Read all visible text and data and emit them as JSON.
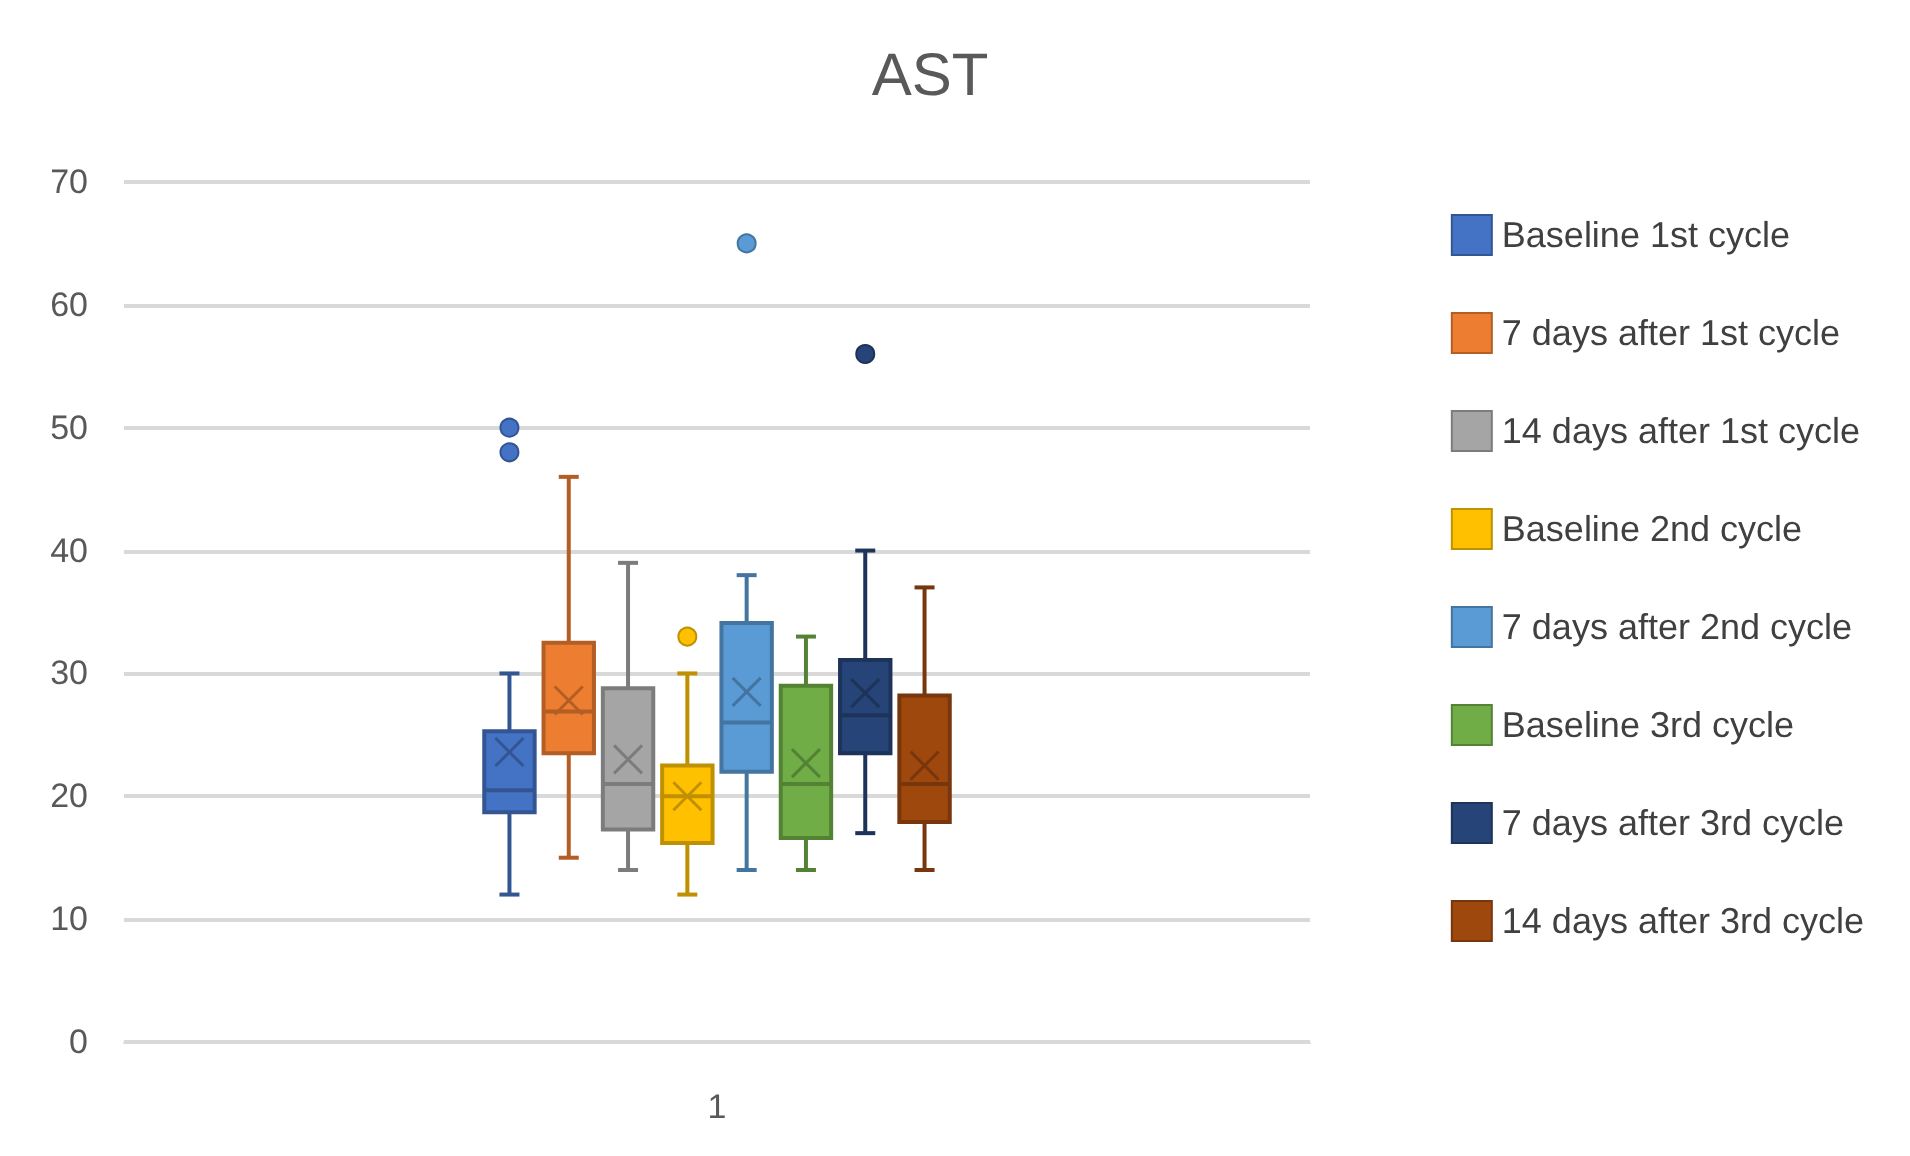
{
  "chart_data": {
    "type": "box",
    "title": "AST",
    "categories": [
      "1"
    ],
    "ylim": [
      0,
      70
    ],
    "yticks": [
      0,
      10,
      20,
      30,
      40,
      50,
      60,
      70
    ],
    "grid": "y",
    "legend": "right",
    "marker": "cross",
    "series": [
      {
        "name": "Baseline 1st cycle",
        "color": "#4472c4",
        "boxes": [
          {
            "low": 12,
            "q1": 18.7,
            "median": 20.5,
            "q3": 25.3,
            "high": 30,
            "mean": 23.6,
            "outliers": [
              50,
              48
            ]
          }
        ]
      },
      {
        "name": "7 days after 1st cycle",
        "color": "#ed7d31",
        "boxes": [
          {
            "low": 15,
            "q1": 23.5,
            "median": 26.9,
            "q3": 32.5,
            "high": 46,
            "mean": 27.8
          }
        ]
      },
      {
        "name": "14 days after 1st cycle",
        "color": "#a5a5a5",
        "boxes": [
          {
            "low": 14,
            "q1": 17.3,
            "median": 21,
            "q3": 28.8,
            "high": 39,
            "mean": 23
          }
        ]
      },
      {
        "name": "Baseline 2nd cycle",
        "color": "#ffc000",
        "boxes": [
          {
            "low": 12,
            "q1": 16.2,
            "median": 20,
            "q3": 22.5,
            "high": 30,
            "mean": 20,
            "outliers": [
              33
            ]
          }
        ]
      },
      {
        "name": "7 days after 2nd cycle",
        "color": "#5b9bd5",
        "boxes": [
          {
            "low": 14,
            "q1": 22,
            "median": 26,
            "q3": 34.1,
            "high": 38,
            "mean": 28.5,
            "outliers": [
              65
            ]
          }
        ]
      },
      {
        "name": "Baseline 3rd cycle",
        "color": "#70ad47",
        "boxes": [
          {
            "low": 14,
            "q1": 16.6,
            "median": 21,
            "q3": 29,
            "high": 33,
            "mean": 22.7
          }
        ]
      },
      {
        "name": "7 days after 3rd cycle",
        "color": "#264478",
        "boxes": [
          {
            "low": 17,
            "q1": 23.5,
            "median": 26.6,
            "q3": 31.1,
            "high": 40,
            "mean": 28.4,
            "outliers": [
              56
            ]
          }
        ]
      },
      {
        "name": "14 days after 3rd cycle",
        "color": "#9e480e",
        "boxes": [
          {
            "low": 14,
            "q1": 17.9,
            "median": 21,
            "q3": 28.2,
            "high": 37,
            "mean": 22.5
          }
        ]
      }
    ]
  }
}
